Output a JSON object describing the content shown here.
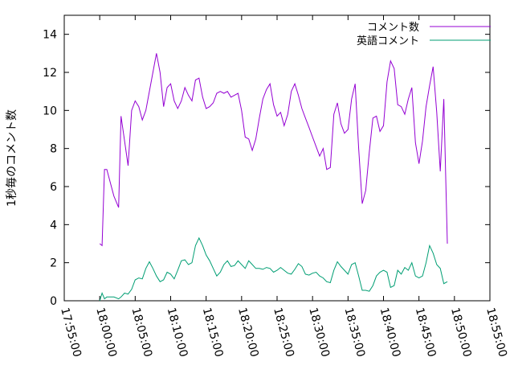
{
  "chart_data": {
    "type": "line",
    "title": "",
    "xlabel": "",
    "ylabel": "1秒毎のコメント数",
    "xlim": [
      "17:55:00",
      "18:55:00"
    ],
    "ylim": [
      0,
      15
    ],
    "x_ticks": [
      "17:55:00",
      "18:00:00",
      "18:05:00",
      "18:10:00",
      "18:15:00",
      "18:20:00",
      "18:25:00",
      "18:30:00",
      "18:35:00",
      "18:40:00",
      "18:45:00",
      "18:50:00",
      "18:55:00"
    ],
    "y_ticks": [
      "0",
      "2",
      "4",
      "6",
      "8",
      "10",
      "12",
      "14"
    ],
    "legend_position": "top-right",
    "grid": false,
    "series": [
      {
        "name": "コメント数",
        "color": "#9400d3",
        "points": [
          [
            "18:00:00",
            3.0
          ],
          [
            "18:00:20",
            2.9
          ],
          [
            "18:00:40",
            6.9
          ],
          [
            "18:01:00",
            6.9
          ],
          [
            "18:02:00",
            5.5
          ],
          [
            "18:02:40",
            4.9
          ],
          [
            "18:03:00",
            9.7
          ],
          [
            "18:04:00",
            7.1
          ],
          [
            "18:04:30",
            10.0
          ],
          [
            "18:05:00",
            10.5
          ],
          [
            "18:05:30",
            10.2
          ],
          [
            "18:06:00",
            9.5
          ],
          [
            "18:06:30",
            10.0
          ],
          [
            "18:07:30",
            12.0
          ],
          [
            "18:08:00",
            13.0
          ],
          [
            "18:08:30",
            12.0
          ],
          [
            "18:09:00",
            10.2
          ],
          [
            "18:09:30",
            11.2
          ],
          [
            "18:10:00",
            11.4
          ],
          [
            "18:10:30",
            10.5
          ],
          [
            "18:11:00",
            10.1
          ],
          [
            "18:11:30",
            10.5
          ],
          [
            "18:12:00",
            11.2
          ],
          [
            "18:12:30",
            10.8
          ],
          [
            "18:13:00",
            10.5
          ],
          [
            "18:13:30",
            11.6
          ],
          [
            "18:14:00",
            11.7
          ],
          [
            "18:14:30",
            10.7
          ],
          [
            "18:15:00",
            10.1
          ],
          [
            "18:15:30",
            10.2
          ],
          [
            "18:16:00",
            10.4
          ],
          [
            "18:16:30",
            10.9
          ],
          [
            "18:17:00",
            11.0
          ],
          [
            "18:17:30",
            10.9
          ],
          [
            "18:18:00",
            11.0
          ],
          [
            "18:18:30",
            10.7
          ],
          [
            "18:19:00",
            10.8
          ],
          [
            "18:19:30",
            10.9
          ],
          [
            "18:20:00",
            10.0
          ],
          [
            "18:20:30",
            8.6
          ],
          [
            "18:21:00",
            8.5
          ],
          [
            "18:21:30",
            7.9
          ],
          [
            "18:22:00",
            8.5
          ],
          [
            "18:22:30",
            9.6
          ],
          [
            "18:23:00",
            10.6
          ],
          [
            "18:23:30",
            11.1
          ],
          [
            "18:24:00",
            11.4
          ],
          [
            "18:24:30",
            10.3
          ],
          [
            "18:25:00",
            9.7
          ],
          [
            "18:25:30",
            9.9
          ],
          [
            "18:26:00",
            9.2
          ],
          [
            "18:26:30",
            9.8
          ],
          [
            "18:27:00",
            11.0
          ],
          [
            "18:27:30",
            11.4
          ],
          [
            "18:28:00",
            10.8
          ],
          [
            "18:28:30",
            10.1
          ],
          [
            "18:29:00",
            9.6
          ],
          [
            "18:29:30",
            9.1
          ],
          [
            "18:30:00",
            8.6
          ],
          [
            "18:30:30",
            8.1
          ],
          [
            "18:31:00",
            7.6
          ],
          [
            "18:31:30",
            8.0
          ],
          [
            "18:32:00",
            6.9
          ],
          [
            "18:32:30",
            7.0
          ],
          [
            "18:33:00",
            9.8
          ],
          [
            "18:33:30",
            10.4
          ],
          [
            "18:34:00",
            9.3
          ],
          [
            "18:34:30",
            8.8
          ],
          [
            "18:35:00",
            9.0
          ],
          [
            "18:35:30",
            10.6
          ],
          [
            "18:36:00",
            11.4
          ],
          [
            "18:36:30",
            8.0
          ],
          [
            "18:37:00",
            5.1
          ],
          [
            "18:37:30",
            5.8
          ],
          [
            "18:38:00",
            7.8
          ],
          [
            "18:38:30",
            9.6
          ],
          [
            "18:39:00",
            9.7
          ],
          [
            "18:39:30",
            8.9
          ],
          [
            "18:40:00",
            9.2
          ],
          [
            "18:40:30",
            11.5
          ],
          [
            "18:41:00",
            12.6
          ],
          [
            "18:41:30",
            12.2
          ],
          [
            "18:42:00",
            10.3
          ],
          [
            "18:42:30",
            10.2
          ],
          [
            "18:43:00",
            9.8
          ],
          [
            "18:43:30",
            10.6
          ],
          [
            "18:44:00",
            11.2
          ],
          [
            "18:44:30",
            8.3
          ],
          [
            "18:45:00",
            7.2
          ],
          [
            "18:45:30",
            8.4
          ],
          [
            "18:46:00",
            10.2
          ],
          [
            "18:46:30",
            11.3
          ],
          [
            "18:47:00",
            12.3
          ],
          [
            "18:47:30",
            9.9
          ],
          [
            "18:48:00",
            6.8
          ],
          [
            "18:48:30",
            10.6
          ],
          [
            "18:49:00",
            3.0
          ]
        ]
      },
      {
        "name": "英語コメント",
        "color": "#009e73",
        "points": [
          [
            "18:00:00",
            0.0
          ],
          [
            "18:00:20",
            0.4
          ],
          [
            "18:00:40",
            0.1
          ],
          [
            "18:01:00",
            0.2
          ],
          [
            "18:02:00",
            0.2
          ],
          [
            "18:02:40",
            0.1
          ],
          [
            "18:03:00",
            0.2
          ],
          [
            "18:03:30",
            0.4
          ],
          [
            "18:04:00",
            0.35
          ],
          [
            "18:04:30",
            0.6
          ],
          [
            "18:05:00",
            1.1
          ],
          [
            "18:05:30",
            1.2
          ],
          [
            "18:06:00",
            1.15
          ],
          [
            "18:06:30",
            1.7
          ],
          [
            "18:07:00",
            2.05
          ],
          [
            "18:07:30",
            1.7
          ],
          [
            "18:08:00",
            1.3
          ],
          [
            "18:08:30",
            1.0
          ],
          [
            "18:09:00",
            1.1
          ],
          [
            "18:09:30",
            1.5
          ],
          [
            "18:10:00",
            1.4
          ],
          [
            "18:10:30",
            1.15
          ],
          [
            "18:11:00",
            1.6
          ],
          [
            "18:11:30",
            2.1
          ],
          [
            "18:12:00",
            2.15
          ],
          [
            "18:12:30",
            1.9
          ],
          [
            "18:13:00",
            2.0
          ],
          [
            "18:13:30",
            2.9
          ],
          [
            "18:14:00",
            3.3
          ],
          [
            "18:14:30",
            2.9
          ],
          [
            "18:15:00",
            2.4
          ],
          [
            "18:15:30",
            2.1
          ],
          [
            "18:16:00",
            1.7
          ],
          [
            "18:16:30",
            1.3
          ],
          [
            "18:17:00",
            1.5
          ],
          [
            "18:17:30",
            1.9
          ],
          [
            "18:18:00",
            2.1
          ],
          [
            "18:18:30",
            1.8
          ],
          [
            "18:19:00",
            1.85
          ],
          [
            "18:19:30",
            2.1
          ],
          [
            "18:20:00",
            1.9
          ],
          [
            "18:20:30",
            1.7
          ],
          [
            "18:21:00",
            2.1
          ],
          [
            "18:21:30",
            1.9
          ],
          [
            "18:22:00",
            1.7
          ],
          [
            "18:22:30",
            1.7
          ],
          [
            "18:23:00",
            1.65
          ],
          [
            "18:23:30",
            1.75
          ],
          [
            "18:24:00",
            1.7
          ],
          [
            "18:24:30",
            1.5
          ],
          [
            "18:25:00",
            1.6
          ],
          [
            "18:25:30",
            1.75
          ],
          [
            "18:26:00",
            1.6
          ],
          [
            "18:26:30",
            1.45
          ],
          [
            "18:27:00",
            1.4
          ],
          [
            "18:27:30",
            1.65
          ],
          [
            "18:28:00",
            1.95
          ],
          [
            "18:28:30",
            1.8
          ],
          [
            "18:29:00",
            1.4
          ],
          [
            "18:29:30",
            1.35
          ],
          [
            "18:30:00",
            1.45
          ],
          [
            "18:30:30",
            1.5
          ],
          [
            "18:31:00",
            1.3
          ],
          [
            "18:31:30",
            1.2
          ],
          [
            "18:32:00",
            1.0
          ],
          [
            "18:32:30",
            0.95
          ],
          [
            "18:33:00",
            1.6
          ],
          [
            "18:33:30",
            2.05
          ],
          [
            "18:34:00",
            1.8
          ],
          [
            "18:34:30",
            1.6
          ],
          [
            "18:35:00",
            1.4
          ],
          [
            "18:35:30",
            1.9
          ],
          [
            "18:36:00",
            2.0
          ],
          [
            "18:36:30",
            1.3
          ],
          [
            "18:37:00",
            0.55
          ],
          [
            "18:37:30",
            0.55
          ],
          [
            "18:38:00",
            0.5
          ],
          [
            "18:38:30",
            0.8
          ],
          [
            "18:39:00",
            1.3
          ],
          [
            "18:39:30",
            1.5
          ],
          [
            "18:40:00",
            1.6
          ],
          [
            "18:40:30",
            1.5
          ],
          [
            "18:41:00",
            0.7
          ],
          [
            "18:41:30",
            0.8
          ],
          [
            "18:42:00",
            1.6
          ],
          [
            "18:42:30",
            1.4
          ],
          [
            "18:43:00",
            1.75
          ],
          [
            "18:43:30",
            1.6
          ],
          [
            "18:44:00",
            2.0
          ],
          [
            "18:44:30",
            1.3
          ],
          [
            "18:45:00",
            1.2
          ],
          [
            "18:45:30",
            1.3
          ],
          [
            "18:46:00",
            2.0
          ],
          [
            "18:46:30",
            2.9
          ],
          [
            "18:47:00",
            2.5
          ],
          [
            "18:47:30",
            1.9
          ],
          [
            "18:48:00",
            1.7
          ],
          [
            "18:48:30",
            0.9
          ],
          [
            "18:49:00",
            1.0
          ]
        ]
      }
    ]
  }
}
